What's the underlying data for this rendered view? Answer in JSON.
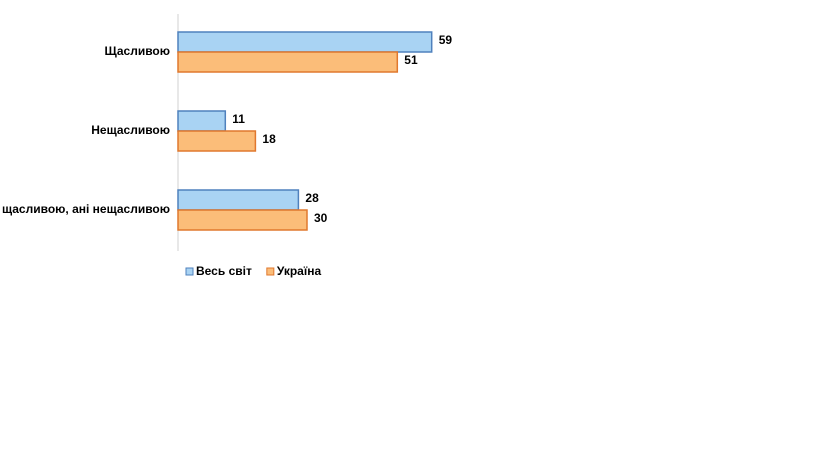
{
  "chart_data": {
    "type": "hbar",
    "categories": [
      "Щасливою",
      "Нещасливою",
      "Ані щасливою, ані нещасливою"
    ],
    "series": [
      {
        "name": "Весь світ",
        "color": "#a9d3f3",
        "values": [
          59,
          11,
          28
        ]
      },
      {
        "name": "Україна",
        "color": "#fbbd79",
        "values": [
          51,
          18,
          30
        ]
      }
    ],
    "xlim": [
      0,
      100
    ]
  }
}
